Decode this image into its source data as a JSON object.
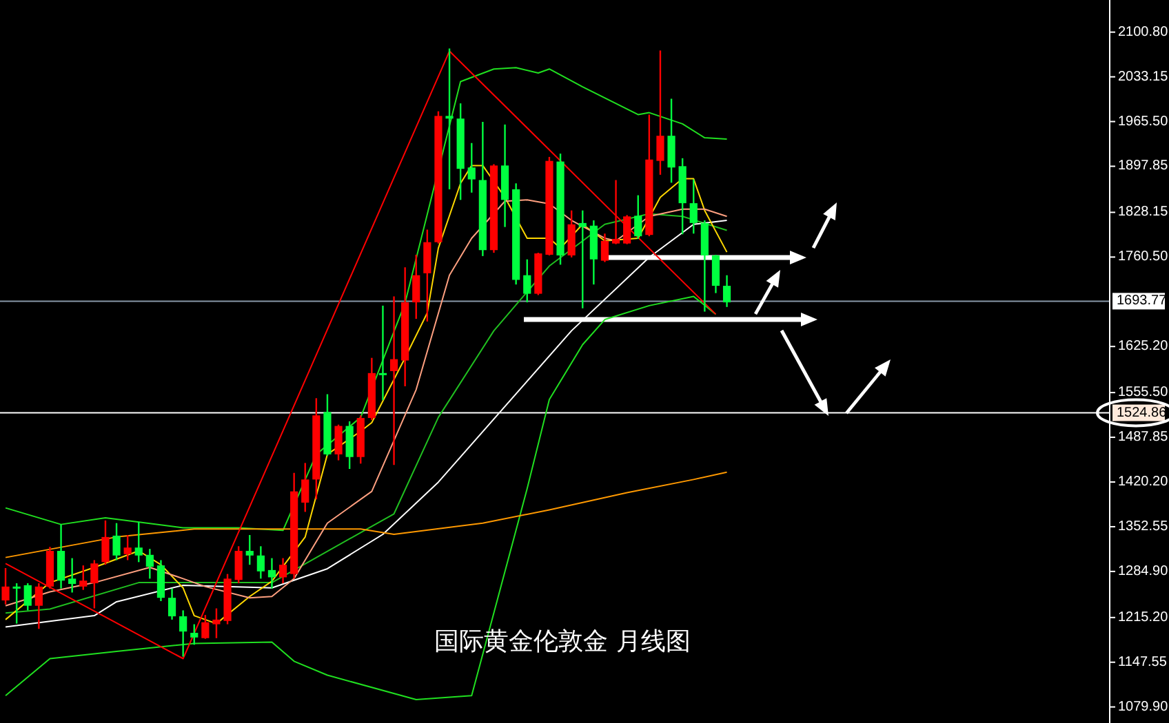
{
  "chart_data": {
    "type": "candlestick",
    "title": "国际黄金伦敦金 月线图",
    "categories": [
      null,
      null,
      null,
      null,
      null,
      null,
      null,
      null,
      null,
      null,
      null,
      null,
      null,
      null,
      null,
      null,
      null,
      null,
      null,
      null,
      null,
      null,
      null,
      null,
      null,
      null,
      null,
      null,
      null,
      null,
      null,
      null,
      null,
      null,
      null,
      null,
      null,
      null,
      null,
      null,
      null,
      null,
      null,
      null,
      null,
      null,
      null,
      null,
      null,
      null,
      null,
      null,
      null,
      null,
      null,
      null,
      null,
      null,
      null,
      null,
      null,
      null,
      null,
      null,
      null,
      null,
      null,
      null,
      null,
      null,
      null,
      null,
      null,
      null,
      null,
      null,
      null,
      null,
      null,
      null,
      null,
      null,
      null,
      null,
      null,
      null,
      null,
      null,
      null,
      null,
      null,
      null,
      null,
      null,
      null,
      null,
      null,
      null,
      null,
      null
    ],
    "ylim": [
      1055.6,
      2149.4
    ],
    "yticks": [
      {
        "value": 2100.8,
        "label": "2100.80"
      },
      {
        "value": 2033.15,
        "label": "2033.15"
      },
      {
        "value": 1965.5,
        "label": "1965.50"
      },
      {
        "value": 1897.85,
        "label": "1897.85"
      },
      {
        "value": 1828.15,
        "label": "1828.15"
      },
      {
        "value": 1760.5,
        "label": "1760.50"
      },
      {
        "value": 1625.2,
        "label": "1625.20"
      },
      {
        "value": 1555.5,
        "label": "1555.50"
      },
      {
        "value": 1487.85,
        "label": "1487.85"
      },
      {
        "value": 1420.2,
        "label": "1420.20"
      },
      {
        "value": 1352.55,
        "label": "1352.55"
      },
      {
        "value": 1284.9,
        "label": "1284.90"
      },
      {
        "value": 1215.2,
        "label": "1215.20"
      },
      {
        "value": 1147.55,
        "label": "1147.55"
      },
      {
        "value": 1079.9,
        "label": "1079.90"
      }
    ],
    "tick_labels": "y",
    "grid": false,
    "series": [
      {
        "ohlc": [
          [
            1241,
            1290,
            1235,
            1262
          ],
          [
            1262,
            1267,
            1206,
            1259
          ],
          [
            1264,
            1267,
            1226,
            1233
          ],
          [
            1233,
            1267,
            1198,
            1262
          ],
          [
            1262,
            1322,
            1259,
            1316
          ],
          [
            1316,
            1356,
            1259,
            1271
          ],
          [
            1274,
            1305,
            1253,
            1266
          ],
          [
            1262,
            1294,
            1257,
            1271
          ],
          [
            1267,
            1302,
            1229,
            1297
          ],
          [
            1299,
            1362,
            1295,
            1337
          ],
          [
            1339,
            1358,
            1302,
            1309
          ],
          [
            1311,
            1340,
            1302,
            1321
          ],
          [
            1321,
            1360,
            1299,
            1309
          ],
          [
            1310,
            1319,
            1274,
            1292
          ],
          [
            1294,
            1302,
            1240,
            1245
          ],
          [
            1245,
            1259,
            1212,
            1217
          ],
          [
            1217,
            1226,
            1156,
            1194
          ],
          [
            1192,
            1205,
            1174,
            1185
          ],
          [
            1184,
            1219,
            1183,
            1208
          ],
          [
            1205,
            1229,
            1184,
            1212
          ],
          [
            1210,
            1281,
            1205,
            1274
          ],
          [
            1272,
            1323,
            1267,
            1316
          ],
          [
            1316,
            1340,
            1295,
            1309
          ],
          [
            1309,
            1323,
            1274,
            1285
          ],
          [
            1287,
            1305,
            1259,
            1276
          ],
          [
            1276,
            1305,
            1267,
            1295
          ],
          [
            1281,
            1434,
            1274,
            1406
          ],
          [
            1389,
            1449,
            1375,
            1424
          ],
          [
            1424,
            1547,
            1394,
            1521
          ],
          [
            1526,
            1553,
            1460,
            1462
          ],
          [
            1462,
            1507,
            1453,
            1505
          ],
          [
            1505,
            1512,
            1440,
            1458
          ],
          [
            1458,
            1521,
            1448,
            1517
          ],
          [
            1517,
            1608,
            1514,
            1585
          ],
          [
            1585,
            1687,
            1544,
            1582
          ],
          [
            1588,
            1701,
            1446,
            1606
          ],
          [
            1604,
            1745,
            1565,
            1692
          ],
          [
            1692,
            1764,
            1667,
            1733
          ],
          [
            1736,
            1802,
            1663,
            1783
          ],
          [
            1783,
            1981,
            1781,
            1974
          ],
          [
            1974,
            2076,
            1863,
            1970
          ],
          [
            1970,
            1993,
            1847,
            1894
          ],
          [
            1896,
            1933,
            1858,
            1878
          ],
          [
            1877,
            1965,
            1762,
            1771
          ],
          [
            1771,
            1901,
            1767,
            1899
          ],
          [
            1899,
            1961,
            1806,
            1847
          ],
          [
            1863,
            1872,
            1719,
            1726
          ],
          [
            1733,
            1757,
            1692,
            1705
          ],
          [
            1705,
            1767,
            1703,
            1766
          ],
          [
            1764,
            1912,
            1763,
            1906
          ],
          [
            1905,
            1917,
            1749,
            1763
          ],
          [
            1763,
            1831,
            1760,
            1810
          ],
          [
            1812,
            1831,
            1683,
            1806
          ],
          [
            1808,
            1816,
            1719,
            1757
          ],
          [
            1755,
            1796,
            1753,
            1785
          ],
          [
            1781,
            1877,
            1780,
            1788
          ],
          [
            1781,
            1824,
            1780,
            1822
          ],
          [
            1823,
            1854,
            1788,
            1792
          ],
          [
            1794,
            1976,
            1792,
            1908
          ],
          [
            1906,
            2073,
            1885,
            1944
          ],
          [
            1944,
            2000,
            1873,
            1896
          ],
          [
            1898,
            1910,
            1795,
            1842
          ],
          [
            1842,
            1878,
            1796,
            1812
          ],
          [
            1812,
            1816,
            1678,
            1763
          ],
          [
            1763,
            1764,
            1706,
            1717
          ],
          [
            1717,
            1733,
            1685,
            1692
          ],
          null,
          null,
          null,
          null,
          null,
          null,
          null,
          null,
          null,
          null,
          null,
          null,
          null,
          null,
          null,
          null,
          null,
          null,
          null,
          null,
          null,
          null,
          null,
          null,
          null,
          null,
          null,
          null,
          null,
          null,
          null,
          null,
          null,
          null
        ],
        "colors": [
          "#ff0000",
          "#00ff40",
          "#00ff40",
          "#ff0000",
          "#ff0000",
          "#00ff40",
          "#00ff40",
          "#ff0000",
          "#ff0000",
          "#ff0000",
          "#00ff40",
          "#ff0000",
          "#00ff40",
          "#00ff40",
          "#00ff40",
          "#00ff40",
          "#00ff40",
          "#00ff40",
          "#ff0000",
          "#ff0000",
          "#ff0000",
          "#ff0000",
          "#00ff40",
          "#00ff40",
          "#00ff40",
          "#ff0000",
          "#ff0000",
          "#ff0000",
          "#ff0000",
          "#00ff40",
          "#ff0000",
          "#00ff40",
          "#ff0000",
          "#ff0000",
          "#00ff40",
          "#ff0000",
          "#ff0000",
          "#ff0000",
          "#ff0000",
          "#ff0000",
          "#00ff40",
          "#00ff40",
          "#00ff40",
          "#00ff40",
          "#ff0000",
          "#00ff40",
          "#00ff40",
          "#00ff40",
          "#ff0000",
          "#ff0000",
          "#00ff40",
          "#ff0000",
          "#00ff40",
          "#00ff40",
          "#ff0000",
          "#ff0000",
          "#ff0000",
          "#00ff40",
          "#ff0000",
          "#ff0000",
          "#00ff40",
          "#00ff40",
          "#00ff40",
          "#00ff40",
          "#00ff40",
          "#00ff40",
          null,
          null,
          null,
          null,
          null,
          null,
          null,
          null,
          null,
          null,
          null,
          null,
          null,
          null,
          null,
          null,
          null,
          null,
          null,
          null,
          null,
          null,
          null,
          null,
          null,
          null,
          null,
          null,
          null,
          null,
          null,
          null,
          null,
          null
        ]
      },
      {
        "type": "line",
        "color": "#20e020",
        "values": [
          1381,
          null,
          null,
          null,
          null,
          1356,
          null,
          null,
          null,
          1366,
          null,
          null,
          null,
          null,
          null,
          null,
          1351,
          null,
          null,
          null,
          null,
          1351,
          null,
          null,
          null,
          1347,
          null,
          null,
          1462,
          null,
          null,
          null,
          1518,
          null,
          null,
          null,
          1691,
          null,
          null,
          null,
          null,
          2026,
          null,
          null,
          2045,
          null,
          2047,
          null,
          2039,
          2045,
          null,
          null,
          2018,
          null,
          null,
          null,
          null,
          1976,
          1979,
          null,
          null,
          1962,
          null,
          1941,
          null,
          1939,
          null,
          null,
          null,
          null,
          null,
          null,
          null,
          null,
          null,
          null,
          null,
          null,
          null,
          null,
          null,
          null,
          null,
          null,
          null,
          null,
          null,
          null,
          null,
          null,
          null,
          null,
          null,
          null,
          null,
          null,
          null,
          null,
          null,
          null
        ]
      },
      {
        "type": "line",
        "color": "#20e020",
        "values": [
          1097,
          null,
          null,
          null,
          1153,
          null,
          null,
          null,
          null,
          null,
          1164,
          null,
          null,
          null,
          null,
          null,
          null,
          1176,
          null,
          null,
          null,
          null,
          null,
          null,
          1178,
          null,
          1149,
          null,
          null,
          1128,
          null,
          null,
          null,
          null,
          null,
          null,
          null,
          1091,
          null,
          null,
          null,
          null,
          1097,
          null,
          1222,
          null,
          null,
          1410,
          null,
          1545,
          null,
          null,
          1628,
          null,
          1666,
          null,
          null,
          null,
          1687,
          null,
          null,
          null,
          1701,
          null,
          1674,
          null,
          null,
          null,
          null,
          null,
          null,
          null,
          null,
          null,
          null,
          null,
          null,
          null,
          null,
          null,
          null,
          null,
          null,
          null,
          null,
          null,
          null,
          null,
          null,
          null,
          null,
          null,
          null,
          null,
          null,
          null,
          null,
          null,
          null,
          null
        ]
      },
      {
        "type": "line",
        "color": "#20c020",
        "values": [
          1222,
          null,
          null,
          null,
          1228,
          null,
          null,
          null,
          null,
          null,
          null,
          null,
          1268,
          null,
          null,
          null,
          null,
          null,
          null,
          null,
          null,
          null,
          null,
          null,
          1268,
          null,
          null,
          null,
          null,
          null,
          null,
          null,
          null,
          null,
          null,
          1372,
          null,
          null,
          null,
          1518,
          null,
          null,
          null,
          null,
          1649,
          null,
          null,
          null,
          null,
          1747,
          null,
          null,
          null,
          null,
          1810,
          null,
          null,
          null,
          1826,
          null,
          null,
          1822,
          null,
          null,
          null,
          1801,
          null,
          null,
          null,
          null,
          null,
          null,
          null,
          null,
          null,
          null,
          null,
          null,
          null,
          null,
          null,
          null,
          null,
          null,
          null,
          null,
          null,
          null,
          null,
          null,
          null,
          null,
          null,
          null,
          null,
          null,
          null,
          null,
          null,
          null
        ]
      },
      {
        "type": "line",
        "color": "#ffffff",
        "values": [
          1201,
          null,
          null,
          null,
          null,
          null,
          null,
          null,
          1218,
          null,
          1239,
          null,
          null,
          null,
          null,
          null,
          1264,
          null,
          null,
          null,
          null,
          null,
          null,
          null,
          1260,
          null,
          null,
          null,
          null,
          1289,
          null,
          null,
          null,
          null,
          1341,
          null,
          null,
          null,
          null,
          1420,
          null,
          null,
          null,
          null,
          null,
          null,
          null,
          null,
          null,
          null,
          null,
          1649,
          null,
          null,
          null,
          null,
          null,
          null,
          1760,
          null,
          null,
          null,
          1810,
          null,
          null,
          1816,
          null,
          null,
          null,
          null,
          null,
          null,
          null,
          null,
          null,
          null,
          null,
          null,
          null,
          null,
          null,
          null,
          null,
          null,
          null,
          null,
          null,
          null,
          null,
          null,
          null,
          null,
          null,
          null,
          null,
          null,
          null,
          null,
          null,
          null
        ]
      },
      {
        "type": "line",
        "color": "#ff9900",
        "values": [
          1306,
          null,
          null,
          null,
          null,
          null,
          null,
          null,
          null,
          null,
          1337,
          null,
          null,
          null,
          null,
          null,
          null,
          1349,
          null,
          null,
          null,
          null,
          null,
          null,
          null,
          null,
          null,
          null,
          null,
          null,
          null,
          null,
          1349,
          null,
          null,
          1341,
          null,
          null,
          null,
          null,
          null,
          null,
          null,
          1358,
          null,
          null,
          null,
          null,
          null,
          1378,
          null,
          null,
          null,
          null,
          null,
          null,
          1404,
          null,
          null,
          null,
          null,
          null,
          1424,
          null,
          null,
          1435,
          null,
          null,
          null,
          null,
          null,
          null,
          null,
          null,
          null,
          null,
          null,
          null,
          null,
          null,
          null,
          null,
          null,
          null,
          null,
          null,
          null,
          null,
          null,
          null,
          null,
          null,
          null,
          null,
          null,
          null,
          null,
          null,
          null,
          null
        ]
      },
      {
        "type": "line",
        "color": "#ffd700",
        "values": [
          1212,
          null,
          null,
          null,
          1268,
          null,
          null,
          null,
          1291,
          null,
          null,
          null,
          1316,
          null,
          1295,
          null,
          1260,
          1218,
          null,
          1206,
          null,
          null,
          1247,
          null,
          1270,
          null,
          null,
          1337,
          null,
          1462,
          null,
          null,
          1497,
          1510,
          null,
          null,
          1608,
          null,
          1676,
          1774,
          null,
          1872,
          1899,
          1899,
          null,
          1851,
          null,
          1789,
          null,
          1789,
          1774,
          null,
          1810,
          null,
          1785,
          null,
          null,
          1789,
          null,
          1851,
          null,
          1879,
          1879,
          1831,
          null,
          1768,
          null,
          null,
          null,
          null,
          null,
          null,
          null,
          null,
          null,
          null,
          null,
          null,
          null,
          null,
          null,
          null,
          null,
          null,
          null,
          null,
          null,
          null,
          null,
          null,
          null,
          null,
          null,
          null,
          null,
          null,
          null,
          null,
          null,
          null
        ]
      },
      {
        "type": "line",
        "color": "#ffa080",
        "values": [
          1233,
          null,
          null,
          null,
          1254,
          null,
          null,
          null,
          1268,
          null,
          null,
          null,
          null,
          1291,
          null,
          null,
          1274,
          null,
          1262,
          null,
          null,
          null,
          1245,
          null,
          1247,
          null,
          1274,
          null,
          null,
          1358,
          null,
          null,
          null,
          1406,
          null,
          null,
          null,
          1560,
          null,
          null,
          1733,
          null,
          1789,
          null,
          null,
          1845,
          null,
          1847,
          null,
          1841,
          null,
          1816,
          null,
          null,
          1789,
          1785,
          null,
          null,
          1822,
          null,
          null,
          1833,
          null,
          1833,
          null,
          1822,
          null,
          null,
          null,
          null,
          null,
          null,
          null,
          null,
          null,
          null,
          null,
          null,
          null,
          null,
          null,
          null,
          null,
          null,
          null,
          null,
          null,
          null,
          null,
          null,
          null,
          null,
          null,
          null,
          null,
          null,
          null,
          null,
          null,
          null
        ]
      },
      {
        "type": "line",
        "color": "#ff0000",
        "values": [
          1297,
          null,
          null,
          null,
          null,
          null,
          null,
          null,
          null,
          null,
          null,
          null,
          null,
          null,
          null,
          null,
          1153,
          null,
          null,
          null,
          null,
          null,
          null,
          null,
          null,
          null,
          null,
          null,
          null,
          null,
          null,
          null,
          null,
          null,
          null,
          null,
          null,
          null,
          null,
          null,
          2072,
          null,
          null,
          null,
          null,
          null,
          null,
          null,
          null,
          null,
          null,
          null,
          null,
          null,
          null,
          null,
          null,
          null,
          null,
          null,
          null,
          null,
          null,
          null,
          1674,
          null,
          null,
          null,
          null,
          null,
          null,
          null,
          null,
          null,
          null,
          null,
          null,
          null,
          null,
          null,
          null,
          null,
          null,
          null,
          null,
          null,
          null,
          null,
          null,
          null,
          null,
          null,
          null,
          null,
          null,
          null,
          null,
          null,
          null,
          null
        ]
      }
    ],
    "ref_lines": [
      {
        "axis": "y",
        "value": 1693.77,
        "label": "1693.77",
        "color": "#8898a8"
      },
      {
        "axis": "y",
        "value": 1524.86,
        "label": "1524.86",
        "color": "#ffffff"
      }
    ]
  }
}
